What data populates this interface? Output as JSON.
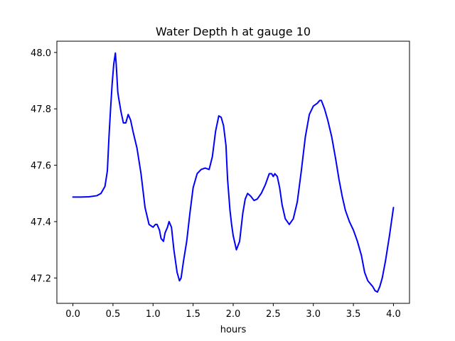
{
  "chart_data": {
    "type": "line",
    "title": "Water Depth h at gauge 10",
    "xlabel": "hours",
    "ylabel": "",
    "xlim": [
      -0.2,
      4.2
    ],
    "ylim": [
      47.11,
      48.04
    ],
    "x_ticks": [
      0.0,
      0.5,
      1.0,
      1.5,
      2.0,
      2.5,
      3.0,
      3.5,
      4.0
    ],
    "x_tick_labels": [
      "0.0",
      "0.5",
      "1.0",
      "1.5",
      "2.0",
      "2.5",
      "3.0",
      "3.5",
      "4.0"
    ],
    "y_ticks": [
      47.2,
      47.4,
      47.6,
      47.8,
      48.0
    ],
    "y_tick_labels": [
      "47.2",
      "47.4",
      "47.6",
      "47.8",
      "48.0"
    ],
    "grid": false,
    "series": [
      {
        "color": "#0000ff",
        "x": [
          0.0,
          0.1,
          0.2,
          0.3,
          0.35,
          0.4,
          0.43,
          0.45,
          0.47,
          0.49,
          0.51,
          0.53,
          0.54,
          0.56,
          0.57,
          0.6,
          0.63,
          0.66,
          0.69,
          0.72,
          0.75,
          0.8,
          0.85,
          0.9,
          0.95,
          1.0,
          1.03,
          1.05,
          1.08,
          1.1,
          1.13,
          1.15,
          1.18,
          1.2,
          1.23,
          1.26,
          1.3,
          1.33,
          1.35,
          1.38,
          1.42,
          1.46,
          1.5,
          1.55,
          1.6,
          1.65,
          1.7,
          1.74,
          1.78,
          1.82,
          1.85,
          1.88,
          1.91,
          1.93,
          1.96,
          1.98,
          2.0,
          2.04,
          2.08,
          2.12,
          2.15,
          2.18,
          2.22,
          2.26,
          2.3,
          2.35,
          2.4,
          2.45,
          2.48,
          2.5,
          2.52,
          2.55,
          2.58,
          2.61,
          2.65,
          2.7,
          2.75,
          2.8,
          2.85,
          2.9,
          2.95,
          3.0,
          3.05,
          3.08,
          3.1,
          3.14,
          3.18,
          3.23,
          3.28,
          3.32,
          3.36,
          3.4,
          3.45,
          3.5,
          3.55,
          3.6,
          3.64,
          3.68,
          3.71,
          3.74,
          3.77,
          3.8,
          3.83,
          3.86,
          3.9,
          3.95,
          4.0
        ],
        "y": [
          47.487,
          47.487,
          47.488,
          47.492,
          47.5,
          47.525,
          47.58,
          47.7,
          47.8,
          47.89,
          47.96,
          47.998,
          47.96,
          47.86,
          47.84,
          47.79,
          47.75,
          47.75,
          47.78,
          47.76,
          47.72,
          47.66,
          47.57,
          47.45,
          47.39,
          47.38,
          47.39,
          47.39,
          47.37,
          47.34,
          47.33,
          47.36,
          47.38,
          47.4,
          47.38,
          47.3,
          47.22,
          47.19,
          47.2,
          47.26,
          47.33,
          47.43,
          47.52,
          47.57,
          47.585,
          47.59,
          47.585,
          47.63,
          47.72,
          47.775,
          47.77,
          47.74,
          47.67,
          47.55,
          47.44,
          47.39,
          47.35,
          47.3,
          47.33,
          47.43,
          47.48,
          47.5,
          47.49,
          47.475,
          47.48,
          47.5,
          47.53,
          47.57,
          47.57,
          47.56,
          47.57,
          47.56,
          47.52,
          47.46,
          47.41,
          47.39,
          47.41,
          47.47,
          47.58,
          47.7,
          47.78,
          47.81,
          47.82,
          47.83,
          47.83,
          47.8,
          47.76,
          47.7,
          47.62,
          47.55,
          47.49,
          47.44,
          47.4,
          47.37,
          47.33,
          47.28,
          47.22,
          47.19,
          47.18,
          47.17,
          47.155,
          47.15,
          47.17,
          47.2,
          47.26,
          47.35,
          47.45
        ]
      }
    ]
  }
}
